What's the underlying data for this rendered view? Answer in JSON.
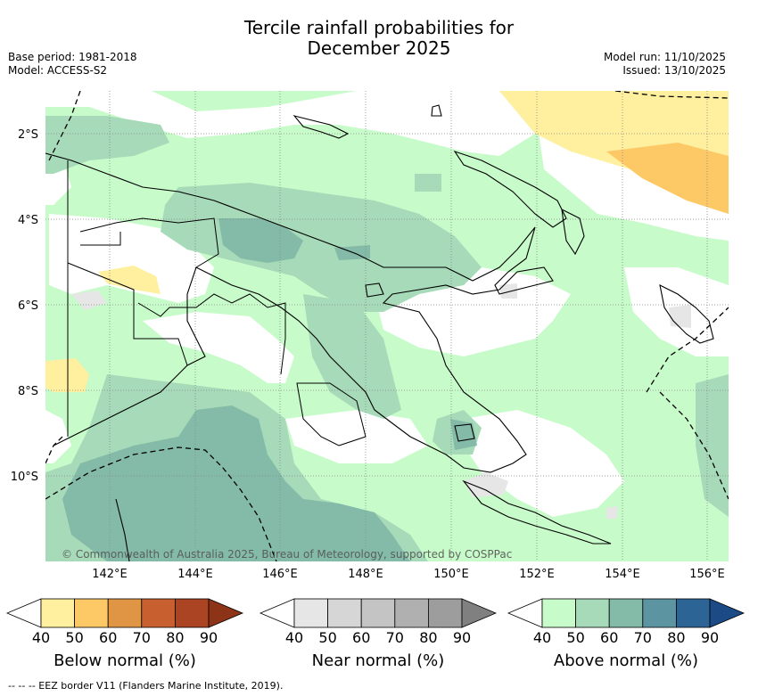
{
  "title": {
    "line1": "Tercile rainfall probabilities for",
    "line2": "December 2025"
  },
  "meta": {
    "base_period": "Base period: 1981-2018",
    "model": "Model: ACCESS-S2",
    "model_run": "Model run: 11/10/2025",
    "issued": "Issued: 13/10/2025"
  },
  "map": {
    "lon_labels": [
      "142°E",
      "144°E",
      "146°E",
      "148°E",
      "150°E",
      "152°E",
      "154°E",
      "156°E"
    ],
    "lat_labels": [
      "2°S",
      "4°S",
      "6°S",
      "8°S",
      "10°S"
    ],
    "copyright": "© Commonwealth of Australia 2025, Bureau of Meteorology, supported by COSPPac"
  },
  "colorbars": {
    "ticks": [
      "40",
      "50",
      "60",
      "70",
      "80",
      "90"
    ],
    "below": {
      "label": "Below normal (%)",
      "colors": [
        "#fff0a0",
        "#fdc966",
        "#e09545",
        "#c85f2e",
        "#ab4423",
        "#8c3318"
      ]
    },
    "near": {
      "label": "Near normal (%)",
      "colors": [
        "#e6e6e6",
        "#d6d6d6",
        "#c4c4c4",
        "#b0b0b0",
        "#9d9d9d",
        "#808080"
      ]
    },
    "above": {
      "label": "Above normal (%)",
      "colors": [
        "#c8fbca",
        "#a6dab8",
        "#84bba8",
        "#5c94a1",
        "#2d6496",
        "#1a4b87"
      ]
    }
  },
  "footnote": "--  --  -- EEZ border V11 (Flanders Marine Institute, 2019)."
}
